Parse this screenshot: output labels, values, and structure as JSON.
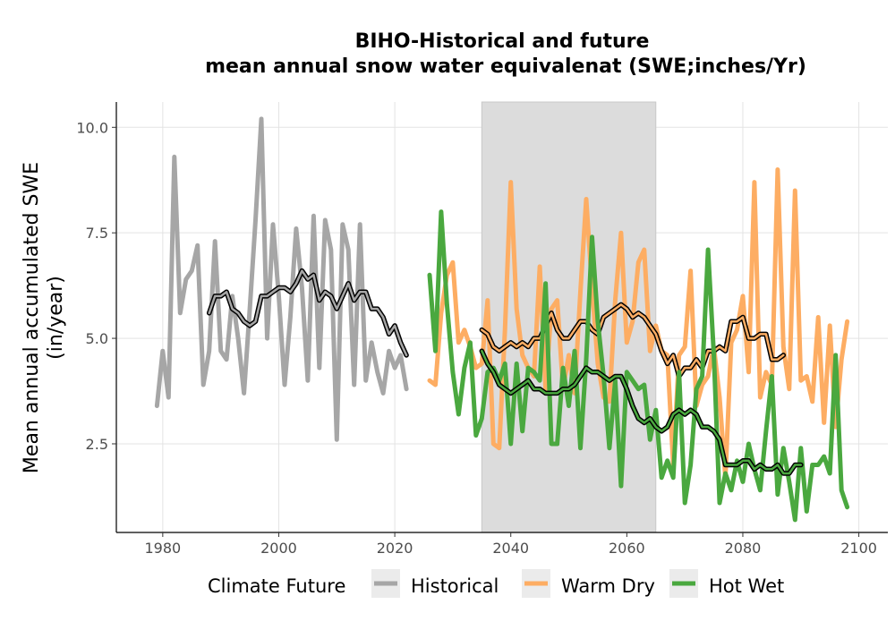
{
  "chart_data": {
    "type": "line",
    "title": "BIHO-Historical and future",
    "subtitle": "mean annual snow water equivalenat (SWE;inches/Yr)",
    "xlabel": "",
    "ylabel_line1": "Mean annual accumulated SWE",
    "ylabel_line2": "(in/year)",
    "xlim": [
      1972,
      2105
    ],
    "ylim": [
      0.4,
      10.6
    ],
    "x_ticks": [
      1980,
      2000,
      2020,
      2040,
      2060,
      2080,
      2100
    ],
    "y_ticks": [
      2.5,
      5.0,
      7.5,
      10.0
    ],
    "y_tick_labels": [
      "2.5",
      "5.0",
      "7.5",
      "10.0"
    ],
    "grid": true,
    "shaded_period": [
      2035,
      2065
    ],
    "legend": {
      "title": "Climate Future",
      "position": "bottom",
      "entries": [
        "Historical",
        "Warm Dry",
        "Hot Wet"
      ]
    },
    "colors": {
      "Historical": "#a6a6a6",
      "Warm Dry": "#fdad63",
      "Hot Wet": "#4aa83f",
      "moving_average": "#000000",
      "shaded_period": "#dcdcdc"
    },
    "series": [
      {
        "name": "Historical",
        "x_start": 1979,
        "values": [
          3.4,
          4.7,
          3.6,
          9.3,
          5.6,
          6.4,
          6.6,
          7.2,
          3.9,
          4.7,
          7.3,
          4.7,
          4.5,
          6.0,
          5.0,
          3.7,
          5.7,
          7.8,
          10.2,
          5.0,
          7.7,
          6.0,
          3.9,
          5.5,
          7.6,
          6.2,
          4.0,
          7.9,
          4.3,
          7.8,
          7.1,
          2.6,
          7.7,
          7.1,
          3.9,
          7.7,
          4.0,
          4.9,
          4.2,
          3.7,
          4.7,
          4.3,
          4.6,
          3.8
        ]
      },
      {
        "name": "Historical moving average",
        "x_start": 1988,
        "values": [
          5.6,
          6.0,
          6.0,
          6.1,
          5.7,
          5.6,
          5.4,
          5.3,
          5.4,
          6.0,
          6.0,
          6.1,
          6.2,
          6.2,
          6.1,
          6.3,
          6.6,
          6.4,
          6.5,
          5.9,
          6.1,
          6.0,
          5.7,
          6.0,
          6.3,
          5.9,
          6.1,
          6.1,
          5.7,
          5.7,
          5.5,
          5.1,
          5.3,
          4.9,
          4.6
        ]
      },
      {
        "name": "Warm Dry",
        "x_start": 2026,
        "values": [
          4.0,
          3.9,
          5.6,
          6.5,
          6.8,
          4.9,
          5.2,
          4.8,
          4.3,
          4.4,
          5.9,
          2.5,
          2.4,
          5.2,
          8.7,
          5.7,
          4.6,
          4.3,
          4.1,
          6.7,
          3.8,
          5.7,
          5.9,
          3.8,
          4.6,
          3.7,
          6.1,
          8.3,
          6.2,
          4.4,
          3.6,
          3.5,
          5.9,
          7.5,
          4.9,
          5.4,
          6.8,
          7.1,
          4.7,
          5.3,
          4.7,
          4.6,
          2.0,
          4.6,
          4.8,
          6.6,
          3.4,
          3.9,
          4.1,
          4.8,
          3.6,
          1.7,
          4.9,
          5.2,
          6.0,
          4.2,
          8.7,
          3.6,
          4.2,
          3.9,
          9.0,
          4.8,
          3.8,
          8.5,
          4.0,
          4.1,
          3.5,
          5.5,
          3.0,
          5.3,
          2.9,
          4.5,
          5.4
        ]
      },
      {
        "name": "Warm Dry moving average",
        "x_start": 2035,
        "values": [
          5.2,
          5.1,
          4.8,
          4.7,
          4.8,
          4.9,
          4.8,
          4.9,
          4.8,
          5.0,
          5.0,
          5.3,
          5.6,
          5.2,
          5.0,
          5.0,
          5.2,
          5.4,
          5.4,
          5.2,
          5.1,
          5.5,
          5.6,
          5.7,
          5.8,
          5.7,
          5.5,
          5.6,
          5.5,
          5.3,
          5.1,
          4.7,
          4.4,
          4.6,
          4.1,
          4.3,
          4.3,
          4.5,
          4.3,
          4.7,
          4.7,
          4.8,
          4.7,
          5.4,
          5.4,
          5.5,
          5.0,
          5.0,
          5.1,
          5.1,
          4.5,
          4.5,
          4.6
        ]
      },
      {
        "name": "Hot Wet",
        "x_start": 2026,
        "values": [
          6.5,
          4.7,
          8.0,
          5.8,
          4.2,
          3.2,
          4.3,
          4.9,
          2.7,
          3.1,
          4.2,
          4.3,
          4.0,
          4.4,
          2.5,
          4.4,
          2.8,
          4.3,
          4.2,
          4.0,
          6.3,
          2.5,
          2.5,
          4.3,
          3.4,
          4.7,
          2.4,
          4.5,
          7.4,
          5.4,
          4.1,
          2.4,
          4.0,
          1.5,
          4.2,
          4.0,
          3.8,
          3.9,
          2.6,
          3.3,
          1.7,
          2.1,
          1.7,
          4.2,
          1.1,
          2.0,
          3.8,
          4.1,
          7.1,
          4.6,
          1.1,
          1.8,
          1.4,
          2.1,
          1.6,
          2.5,
          1.9,
          1.4,
          2.8,
          4.1,
          1.3,
          2.4,
          1.6,
          0.7,
          2.4,
          0.9,
          2.0,
          2.0,
          2.2,
          1.8,
          4.6,
          1.4,
          1.0
        ]
      },
      {
        "name": "Hot Wet moving average",
        "x_start": 2035,
        "values": [
          4.7,
          4.4,
          4.2,
          3.9,
          3.8,
          3.7,
          3.8,
          3.9,
          4.0,
          3.8,
          3.8,
          3.7,
          3.7,
          3.7,
          3.8,
          3.8,
          3.9,
          4.1,
          4.3,
          4.2,
          4.2,
          4.1,
          4.0,
          4.1,
          4.1,
          3.8,
          3.4,
          3.1,
          3.0,
          3.1,
          2.9,
          2.8,
          2.9,
          3.2,
          3.3,
          3.2,
          3.3,
          3.2,
          2.9,
          2.9,
          2.8,
          2.6,
          2.0,
          2.0,
          2.0,
          2.1,
          2.1,
          1.9,
          2.0,
          1.9,
          1.9,
          2.0,
          1.8,
          1.8,
          2.0,
          2.0
        ]
      }
    ]
  }
}
